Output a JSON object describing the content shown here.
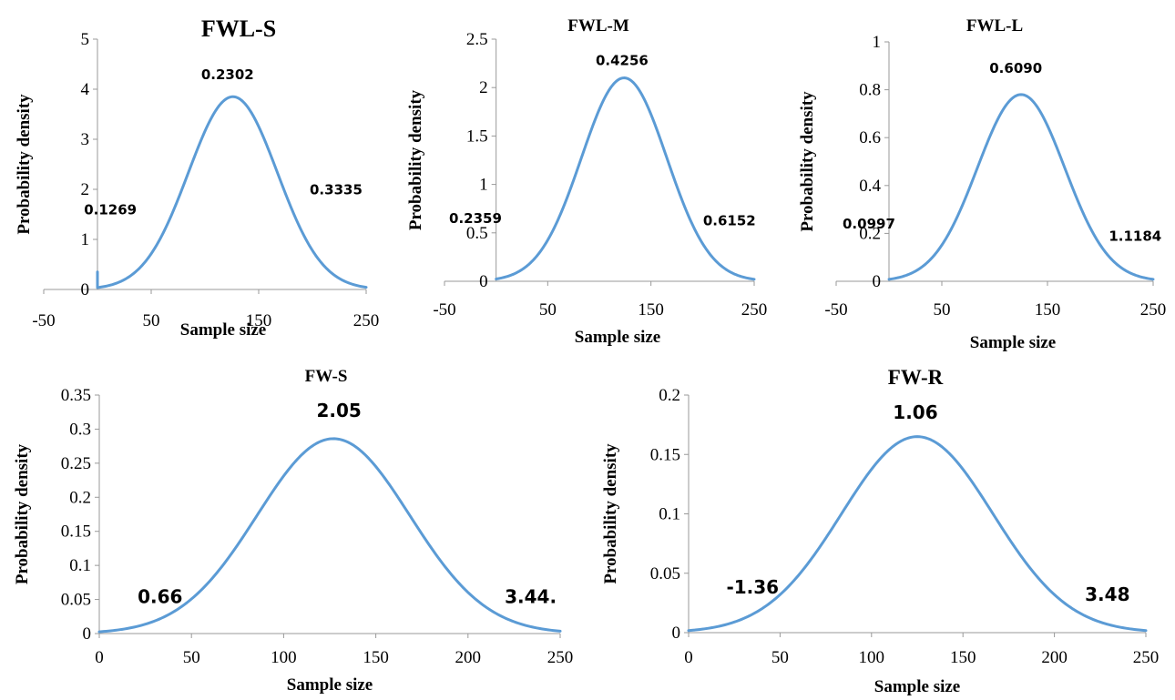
{
  "chart_data": [
    {
      "type": "line",
      "title": "FWL-S",
      "xlabel": "Sample size",
      "ylabel": "Probability density",
      "xlim": [
        -50,
        250
      ],
      "ylim": [
        0,
        5
      ],
      "xticks": [
        "-50",
        "50",
        "150",
        "250"
      ],
      "yticks": [
        "0",
        "1",
        "2",
        "3",
        "4",
        "5"
      ],
      "x_axis_at": 0,
      "grid": false,
      "curve": {
        "type": "normal",
        "mean": 126,
        "sd": 41.4,
        "x_start": 0,
        "x_end": 250,
        "peak": 3.85
      },
      "spike": {
        "x": 0,
        "y_top": 0.35,
        "y_bottom": 0.05
      },
      "annotations": [
        {
          "text": "0.1269",
          "x": 12,
          "y": 1.5
        },
        {
          "text": "0.2302",
          "x": 121,
          "y": 4.2
        },
        {
          "text": "0.3335",
          "x": 222,
          "y": 1.9
        }
      ]
    },
    {
      "type": "line",
      "title": "FWL-M",
      "xlabel": "Sample size",
      "ylabel": "Probability density",
      "xlim": [
        -50,
        250
      ],
      "ylim": [
        0,
        2.5
      ],
      "xticks": [
        "-50",
        "50",
        "150",
        "250"
      ],
      "yticks": [
        "0",
        "0.5",
        "1",
        "1.5",
        "2",
        "2.5"
      ],
      "x_axis_at": 0,
      "grid": false,
      "curve": {
        "type": "normal",
        "mean": 124,
        "sd": 41.4,
        "x_start": 0,
        "x_end": 250,
        "peak": 2.1
      },
      "annotations": [
        {
          "text": "0.2359",
          "x": -20,
          "y": 0.6
        },
        {
          "text": "0.4256",
          "x": 122,
          "y": 2.23
        },
        {
          "text": "0.6152",
          "x": 226,
          "y": 0.58
        }
      ]
    },
    {
      "type": "line",
      "title": "FWL-L",
      "xlabel": "Sample size",
      "ylabel": "Probability density",
      "xlim": [
        -50,
        250
      ],
      "ylim": [
        0,
        1
      ],
      "xticks": [
        "-50",
        "50",
        "150",
        "250"
      ],
      "yticks": [
        "0",
        "0.2",
        "0.4",
        "0.6",
        "0.8",
        "1"
      ],
      "x_axis_at": 0,
      "grid": false,
      "curve": {
        "type": "normal",
        "mean": 125,
        "sd": 41.4,
        "x_start": 0,
        "x_end": 250,
        "peak": 0.78
      },
      "annotations": [
        {
          "text": "0.0997",
          "x": -19,
          "y": 0.22
        },
        {
          "text": "0.6090",
          "x": 120,
          "y": 0.87
        },
        {
          "text": "1.1184",
          "x": 233,
          "y": 0.17
        }
      ]
    },
    {
      "type": "line",
      "title": "FW-S",
      "xlabel": "Sample size",
      "ylabel": "Probability density",
      "xlim": [
        0,
        250
      ],
      "ylim": [
        0,
        0.35
      ],
      "xticks": [
        "0",
        "50",
        "100",
        "150",
        "200",
        "250"
      ],
      "yticks": [
        "0",
        "0.05",
        "0.1",
        "0.15",
        "0.2",
        "0.25",
        "0.3",
        "0.35"
      ],
      "x_axis_at": 0,
      "grid": false,
      "curve": {
        "type": "normal",
        "mean": 127,
        "sd": 41.4,
        "x_start": 0,
        "x_end": 250,
        "peak": 0.286
      },
      "annotations": [
        {
          "text": "0.66",
          "x": 33,
          "y": 0.045
        },
        {
          "text": "2.05",
          "x": 130,
          "y": 0.318
        },
        {
          "text": "3.44.",
          "x": 234,
          "y": 0.045
        }
      ]
    },
    {
      "type": "line",
      "title": "FW-R",
      "xlabel": "Sample size",
      "ylabel": "Probability density",
      "xlim": [
        0,
        250
      ],
      "ylim": [
        0,
        0.2
      ],
      "xticks": [
        "0",
        "50",
        "100",
        "150",
        "200",
        "250"
      ],
      "yticks": [
        "0",
        "0.05",
        "0.1",
        "0.15",
        "0.2"
      ],
      "x_axis_at": 0,
      "grid": false,
      "curve": {
        "type": "normal",
        "mean": 125,
        "sd": 41.4,
        "x_start": 0,
        "x_end": 250,
        "peak": 0.165
      },
      "annotations": [
        {
          "text": "-1.36",
          "x": 35,
          "y": 0.033
        },
        {
          "text": "1.06",
          "x": 124,
          "y": 0.18
        },
        {
          "text": "3.48",
          "x": 229,
          "y": 0.027
        }
      ]
    }
  ]
}
